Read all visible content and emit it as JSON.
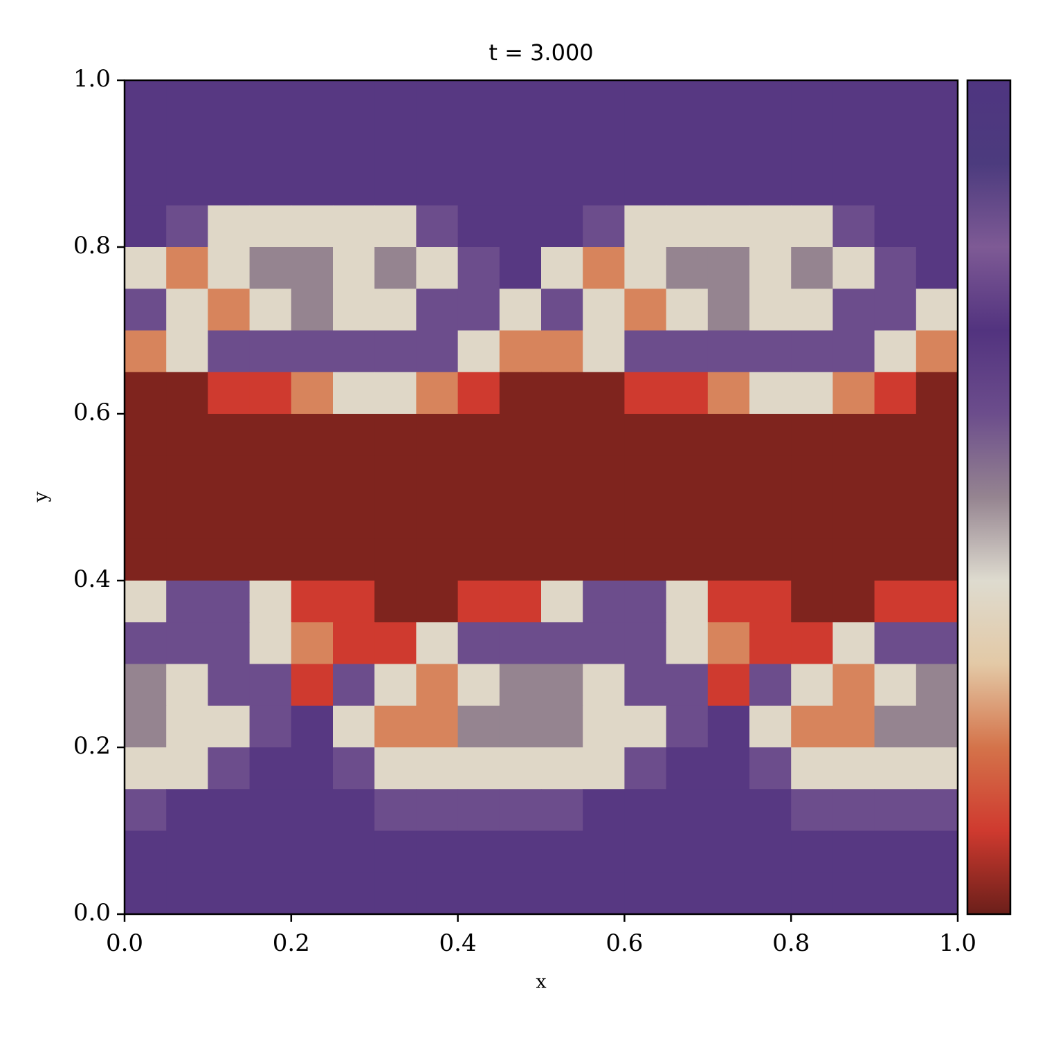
{
  "chart_data": {
    "type": "heatmap",
    "title": "t = 3.000",
    "x_label": "x",
    "y_label": "y",
    "x": [
      0.025,
      0.075,
      0.125,
      0.175,
      0.225,
      0.275,
      0.325,
      0.375,
      0.425,
      0.475,
      0.525,
      0.575,
      0.625,
      0.675,
      0.725,
      0.775,
      0.825,
      0.875,
      0.925,
      0.975
    ],
    "y": [
      0.975,
      0.925,
      0.875,
      0.825,
      0.775,
      0.725,
      0.675,
      0.625,
      0.575,
      0.525,
      0.475,
      0.425,
      0.375,
      0.325,
      0.275,
      0.225,
      0.175,
      0.125,
      0.075,
      0.025
    ],
    "z": [
      [
        0.68,
        0.68,
        0.68,
        0.68,
        0.68,
        0.68,
        0.68,
        0.68,
        0.68,
        0.68,
        0.68,
        0.68,
        0.68,
        0.68,
        0.68,
        0.68,
        0.68,
        0.68,
        0.68,
        0.68
      ],
      [
        0.68,
        0.68,
        0.68,
        0.68,
        0.68,
        0.68,
        0.68,
        0.68,
        0.68,
        0.68,
        0.68,
        0.68,
        0.68,
        0.68,
        0.68,
        0.68,
        0.68,
        0.68,
        0.68,
        0.68
      ],
      [
        0.68,
        0.68,
        0.68,
        0.68,
        0.68,
        0.68,
        0.68,
        0.68,
        0.68,
        0.68,
        0.68,
        0.68,
        0.68,
        0.68,
        0.68,
        0.68,
        0.68,
        0.68,
        0.68,
        0.68
      ],
      [
        0.68,
        0.6,
        0.38,
        0.38,
        0.38,
        0.38,
        0.38,
        0.6,
        0.68,
        0.68,
        0.68,
        0.6,
        0.38,
        0.38,
        0.38,
        0.38,
        0.38,
        0.6,
        0.68,
        0.68
      ],
      [
        0.38,
        0.22,
        0.38,
        0.5,
        0.5,
        0.38,
        0.5,
        0.38,
        0.6,
        0.68,
        0.38,
        0.22,
        0.38,
        0.5,
        0.5,
        0.38,
        0.5,
        0.38,
        0.6,
        0.68
      ],
      [
        0.6,
        0.38,
        0.22,
        0.38,
        0.5,
        0.38,
        0.38,
        0.6,
        0.6,
        0.38,
        0.6,
        0.38,
        0.22,
        0.38,
        0.5,
        0.38,
        0.38,
        0.6,
        0.6,
        0.38
      ],
      [
        0.22,
        0.38,
        0.6,
        0.6,
        0.6,
        0.6,
        0.6,
        0.6,
        0.38,
        0.22,
        0.22,
        0.38,
        0.6,
        0.6,
        0.6,
        0.6,
        0.6,
        0.6,
        0.38,
        0.22
      ],
      [
        0.02,
        0.02,
        0.1,
        0.1,
        0.22,
        0.38,
        0.38,
        0.22,
        0.1,
        0.02,
        0.02,
        0.02,
        0.1,
        0.1,
        0.22,
        0.38,
        0.38,
        0.22,
        0.1,
        0.02
      ],
      [
        0.02,
        0.02,
        0.02,
        0.02,
        0.02,
        0.02,
        0.02,
        0.02,
        0.02,
        0.02,
        0.02,
        0.02,
        0.02,
        0.02,
        0.02,
        0.02,
        0.02,
        0.02,
        0.02,
        0.02
      ],
      [
        0.02,
        0.02,
        0.02,
        0.02,
        0.02,
        0.02,
        0.02,
        0.02,
        0.02,
        0.02,
        0.02,
        0.02,
        0.02,
        0.02,
        0.02,
        0.02,
        0.02,
        0.02,
        0.02,
        0.02
      ],
      [
        0.02,
        0.02,
        0.02,
        0.02,
        0.02,
        0.02,
        0.02,
        0.02,
        0.02,
        0.02,
        0.02,
        0.02,
        0.02,
        0.02,
        0.02,
        0.02,
        0.02,
        0.02,
        0.02,
        0.02
      ],
      [
        0.02,
        0.02,
        0.02,
        0.02,
        0.02,
        0.02,
        0.02,
        0.02,
        0.02,
        0.02,
        0.02,
        0.02,
        0.02,
        0.02,
        0.02,
        0.02,
        0.02,
        0.02,
        0.02,
        0.02
      ],
      [
        0.38,
        0.6,
        0.6,
        0.38,
        0.1,
        0.1,
        0.02,
        0.02,
        0.1,
        0.1,
        0.38,
        0.6,
        0.6,
        0.38,
        0.1,
        0.1,
        0.02,
        0.02,
        0.1,
        0.1
      ],
      [
        0.6,
        0.6,
        0.6,
        0.38,
        0.22,
        0.1,
        0.1,
        0.38,
        0.6,
        0.6,
        0.6,
        0.6,
        0.6,
        0.38,
        0.22,
        0.1,
        0.1,
        0.38,
        0.6,
        0.6
      ],
      [
        0.5,
        0.38,
        0.6,
        0.6,
        0.1,
        0.6,
        0.38,
        0.22,
        0.38,
        0.5,
        0.5,
        0.38,
        0.6,
        0.6,
        0.1,
        0.6,
        0.38,
        0.22,
        0.38,
        0.5
      ],
      [
        0.5,
        0.38,
        0.38,
        0.6,
        0.68,
        0.38,
        0.22,
        0.22,
        0.5,
        0.5,
        0.5,
        0.38,
        0.38,
        0.6,
        0.68,
        0.38,
        0.22,
        0.22,
        0.5,
        0.5
      ],
      [
        0.38,
        0.38,
        0.6,
        0.68,
        0.68,
        0.6,
        0.38,
        0.38,
        0.38,
        0.38,
        0.38,
        0.38,
        0.6,
        0.68,
        0.68,
        0.6,
        0.38,
        0.38,
        0.38,
        0.38
      ],
      [
        0.6,
        0.68,
        0.68,
        0.68,
        0.68,
        0.68,
        0.6,
        0.6,
        0.6,
        0.6,
        0.6,
        0.68,
        0.68,
        0.68,
        0.68,
        0.68,
        0.6,
        0.6,
        0.6,
        0.6
      ],
      [
        0.68,
        0.68,
        0.68,
        0.68,
        0.68,
        0.68,
        0.68,
        0.68,
        0.68,
        0.68,
        0.68,
        0.68,
        0.68,
        0.68,
        0.68,
        0.68,
        0.68,
        0.68,
        0.68,
        0.68
      ],
      [
        0.68,
        0.68,
        0.68,
        0.68,
        0.68,
        0.68,
        0.68,
        0.68,
        0.68,
        0.68,
        0.68,
        0.68,
        0.68,
        0.68,
        0.68,
        0.68,
        0.68,
        0.68,
        0.68,
        0.68
      ]
    ],
    "xlim": [
      0,
      1
    ],
    "ylim": [
      0,
      1
    ],
    "zlim": [
      0,
      1
    ],
    "xticks": [
      {
        "value": 0,
        "label": "0.0"
      },
      0.2,
      0.4,
      0.6,
      0.8,
      {
        "value": 1,
        "label": "1.0"
      }
    ],
    "yticks": [
      {
        "value": 0,
        "label": "0.0"
      },
      0.2,
      0.4,
      0.6,
      0.8,
      {
        "value": 1,
        "label": "1.0"
      }
    ],
    "colormap": [
      "#6b1f1a",
      "#cf3a2f",
      "#d4734a",
      "#e3c9a6",
      "#dedbcf",
      "#958490",
      "#6c4d8c",
      "#52337f",
      "#7e5a95",
      "#4c3b7e",
      "#4f3580"
    ]
  }
}
